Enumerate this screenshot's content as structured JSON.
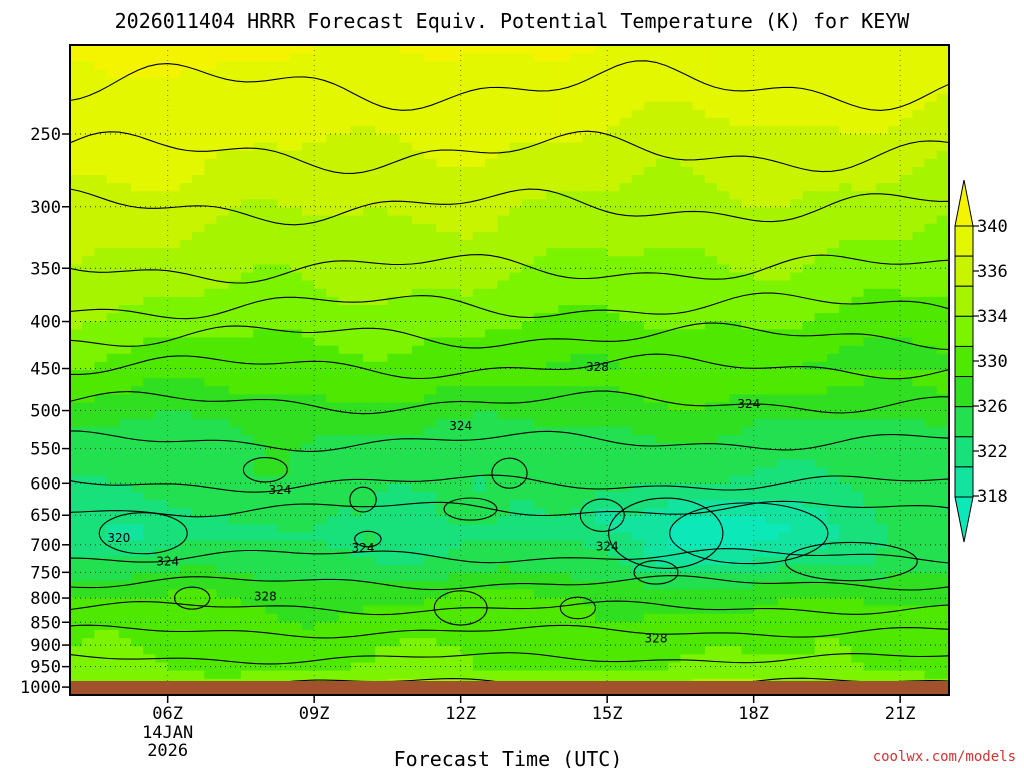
{
  "chart_data": {
    "type": "filled-contour",
    "title": "2026011404 HRRR Forecast Equiv. Potential Temperature (K) for KEYW",
    "xlabel": "Forecast Time (UTC)",
    "ylabel": "",
    "credit": "coolwx.com/models",
    "x_ticks": [
      "06Z",
      "09Z",
      "12Z",
      "15Z",
      "18Z",
      "21Z"
    ],
    "x_date_line1": "14JAN",
    "x_date_line2": "2026",
    "x_range_hours": [
      4.0,
      22.0
    ],
    "y_ticks": [
      250,
      300,
      350,
      400,
      450,
      500,
      550,
      600,
      650,
      700,
      750,
      800,
      850,
      900,
      950,
      1000
    ],
    "y_range_hPa": [
      1020,
      200
    ],
    "colorbar": {
      "ticks": [
        340,
        336,
        334,
        330,
        326,
        322,
        318
      ],
      "bands": [
        {
          "low": 340,
          "color": "#f4f400"
        },
        {
          "low": 336,
          "color": "#e3f700"
        },
        {
          "low": 334,
          "color": "#c8f400"
        },
        {
          "low": 332,
          "color": "#a6f400"
        },
        {
          "low": 330,
          "color": "#7cf400"
        },
        {
          "low": 328,
          "color": "#4ee800"
        },
        {
          "low": 326,
          "color": "#30e020"
        },
        {
          "low": 324,
          "color": "#22e050"
        },
        {
          "low": 322,
          "color": "#18e07a"
        },
        {
          "low": 320,
          "color": "#12e4a0"
        },
        {
          "low": 318,
          "color": "#0ce8b8"
        }
      ]
    },
    "contour_labels": [
      {
        "value": "328",
        "hour": 14.8,
        "p": 448
      },
      {
        "value": "324",
        "hour": 12.0,
        "p": 520
      },
      {
        "value": "324",
        "hour": 17.9,
        "p": 492
      },
      {
        "value": "324",
        "hour": 8.3,
        "p": 610
      },
      {
        "value": "324",
        "hour": 15.0,
        "p": 703
      },
      {
        "value": "324",
        "hour": 10.0,
        "p": 706
      },
      {
        "value": "320",
        "hour": 5.0,
        "p": 688
      },
      {
        "value": "324",
        "hour": 6.0,
        "p": 730
      },
      {
        "value": "328",
        "hour": 8.0,
        "p": 797
      },
      {
        "value": "328",
        "hour": 16.0,
        "p": 885
      }
    ],
    "ground_color": "#a0522d"
  }
}
